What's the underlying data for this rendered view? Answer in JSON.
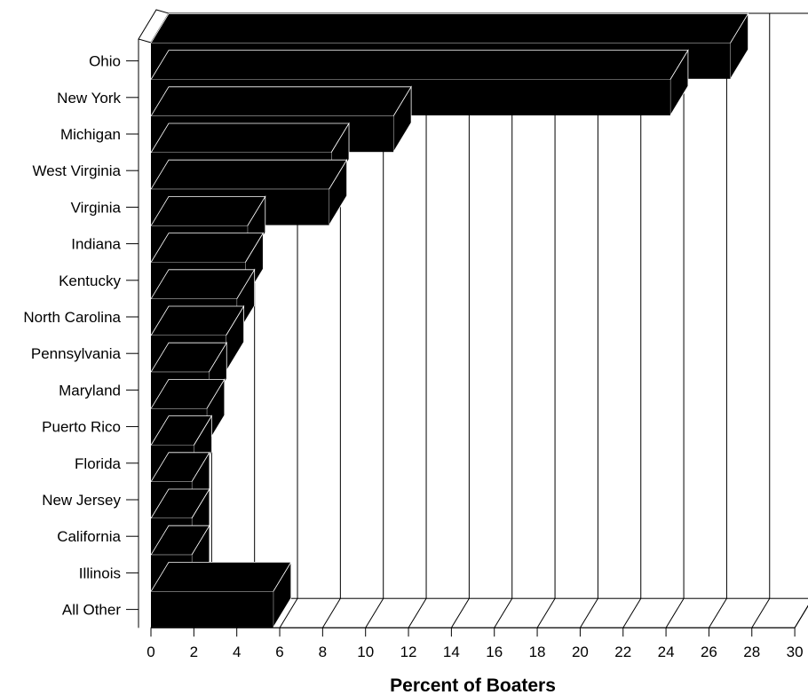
{
  "chart_data": {
    "type": "bar",
    "orientation": "horizontal",
    "style": "3d",
    "title": "",
    "xlabel": "Percent of Boaters",
    "ylabel": "",
    "categories": [
      "Ohio",
      "New York",
      "Michigan",
      "West Virginia",
      "Virginia",
      "Indiana",
      "Kentucky",
      "North Carolina",
      "Pennsylvania",
      "Maryland",
      "Puerto Rico",
      "Florida",
      "New Jersey",
      "California",
      "Illinois",
      "All Other"
    ],
    "values": [
      27.0,
      24.2,
      11.3,
      8.4,
      8.3,
      4.5,
      4.4,
      4.0,
      3.5,
      2.7,
      2.6,
      2.0,
      1.9,
      1.9,
      1.9,
      5.7
    ],
    "xlim": [
      0,
      30
    ],
    "xticks": [
      "0",
      "2",
      "4",
      "6",
      "8",
      "10",
      "12",
      "14",
      "16",
      "18",
      "20",
      "22",
      "24",
      "26",
      "28",
      "30"
    ],
    "grid": true,
    "bar_color": "#000000",
    "legend": "none"
  }
}
